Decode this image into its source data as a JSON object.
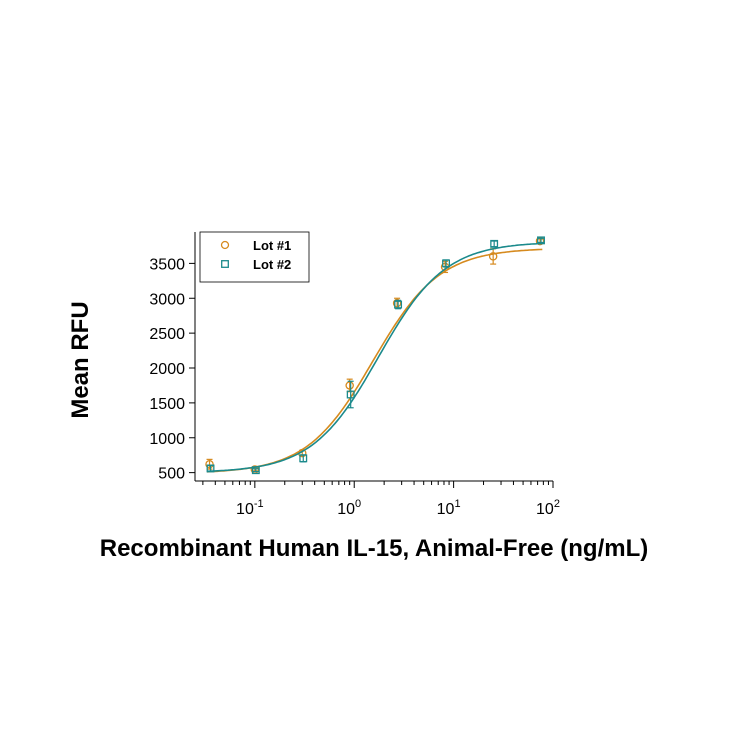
{
  "chart_data": {
    "type": "scatter",
    "title": "",
    "xlabel": "Recombinant Human IL-15, Animal-Free (ng/mL)",
    "ylabel": "Mean RFU",
    "xscale": "log",
    "xlim": [
      0.025,
      100
    ],
    "ylim": [
      380,
      3950
    ],
    "grid": false,
    "legend_position": "top-left",
    "x_ticks": [
      {
        "base": "10",
        "exp": "-1",
        "value": 0.1
      },
      {
        "base": "10",
        "exp": "0",
        "value": 1
      },
      {
        "base": "10",
        "exp": "1",
        "value": 10
      },
      {
        "base": "10",
        "exp": "2",
        "value": 100
      }
    ],
    "y_ticks": [
      "500",
      "1000",
      "1500",
      "2000",
      "2500",
      "3000",
      "3500"
    ],
    "series": [
      {
        "name": "Lot #1",
        "marker": "circle",
        "color": "#D68A1E",
        "x": [
          0.035,
          0.1,
          0.3,
          0.9,
          2.7,
          8.2,
          25,
          74
        ],
        "y": [
          620,
          545,
          780,
          1750,
          2930,
          3450,
          3600,
          3820
        ],
        "err": [
          70,
          20,
          40,
          90,
          70,
          80,
          110,
          30
        ],
        "fit": {
          "bottom": 490,
          "top": 3720,
          "ec50": 1.55,
          "hill": 1.3
        }
      },
      {
        "name": "Lot #2",
        "marker": "square",
        "color": "#1B8A8C",
        "x": [
          0.035,
          0.1,
          0.3,
          0.9,
          2.7,
          8.2,
          25,
          74
        ],
        "y": [
          560,
          535,
          705,
          1620,
          2910,
          3500,
          3780,
          3830
        ],
        "err": [
          40,
          20,
          50,
          190,
          60,
          50,
          40,
          30
        ],
        "fit": {
          "bottom": 500,
          "top": 3810,
          "ec50": 1.75,
          "hill": 1.3
        }
      }
    ]
  }
}
